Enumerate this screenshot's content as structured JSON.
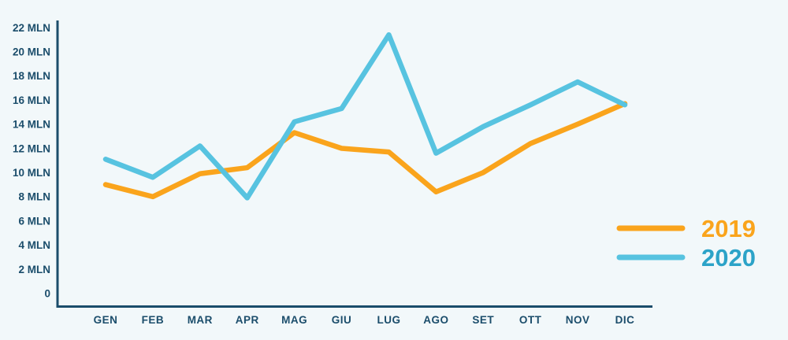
{
  "chart_data": {
    "type": "line",
    "title": "",
    "xlabel": "",
    "ylabel": "",
    "unit": "MLN",
    "grid": false,
    "legend_position": "right-bottom",
    "ylim": [
      0,
      22
    ],
    "categories": [
      "GEN",
      "FEB",
      "MAR",
      "APR",
      "MAG",
      "GIU",
      "LUG",
      "AGO",
      "SET",
      "OTT",
      "NOV",
      "DIC"
    ],
    "series": [
      {
        "name": "2019",
        "color": "#faa41c",
        "label_color": "#faa41c",
        "values": [
          9.0,
          8.0,
          9.9,
          10.4,
          13.3,
          12.0,
          11.7,
          8.4,
          10.0,
          12.4,
          14.0,
          15.7
        ]
      },
      {
        "name": "2020",
        "color": "#57c3e0",
        "label_color": "#2ca3c8",
        "values": [
          11.1,
          9.6,
          12.2,
          7.9,
          14.2,
          15.3,
          21.4,
          11.6,
          13.8,
          15.6,
          17.5,
          15.6
        ]
      }
    ],
    "y_axis": {
      "ticks": [
        {
          "value": 22,
          "label": "22 MLN"
        },
        {
          "value": 20,
          "label": "20 MLN"
        },
        {
          "value": 18,
          "label": "18 MLN"
        },
        {
          "value": 16,
          "label": "16 MLN"
        },
        {
          "value": 14,
          "label": "14 MLN"
        },
        {
          "value": 12,
          "label": "12 MLN"
        },
        {
          "value": 10,
          "label": "10 MLN"
        },
        {
          "value": 8,
          "label": "8 MLN"
        },
        {
          "value": 6,
          "label": "6 MLN"
        },
        {
          "value": 4,
          "label": "4 MLN"
        },
        {
          "value": 2,
          "label": "2 MLN"
        },
        {
          "value": 0,
          "label": "0"
        }
      ]
    },
    "legend": {
      "items": [
        {
          "label": "2019"
        },
        {
          "label": "2020"
        }
      ]
    }
  },
  "colors": {
    "background": "#f2f8fa",
    "axis": "#1b4d6b",
    "text": "#1b4d6b",
    "series_2019": "#faa41c",
    "series_2020_line": "#57c3e0",
    "series_2020_label": "#2ca3c8"
  }
}
